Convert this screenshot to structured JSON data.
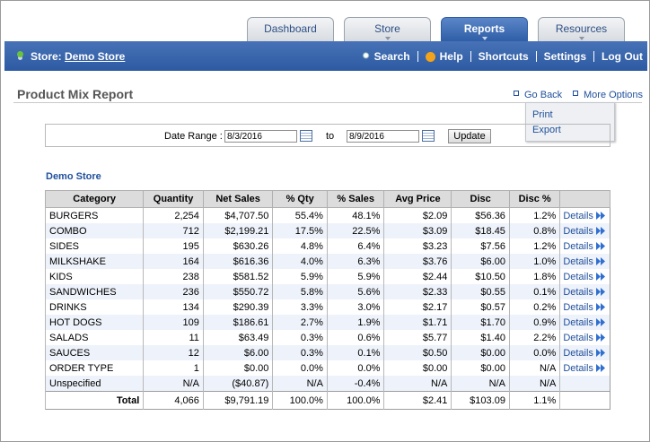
{
  "tabs": [
    "Dashboard",
    "Store",
    "Reports",
    "Resources"
  ],
  "active_tab": 2,
  "store": {
    "label": "Store:",
    "name": "Demo Store"
  },
  "nav": [
    "Search",
    "Help",
    "Shortcuts",
    "Settings",
    "Log Out"
  ],
  "page_title": "Product Mix Report",
  "links": [
    "Go Back",
    "More Options"
  ],
  "menu": [
    "Print",
    "Export"
  ],
  "date_range": {
    "label": "Date Range :",
    "from": "8/3/2016",
    "to_label": "to",
    "to": "8/9/2016",
    "button": "Update"
  },
  "table": {
    "caption": "Demo Store",
    "headers": [
      "Category",
      "Quantity",
      "Net Sales",
      "% Qty",
      "% Sales",
      "Avg Price",
      "Disc",
      "Disc %"
    ],
    "rows": [
      {
        "cells": [
          "BURGERS",
          "2,254",
          "$4,707.50",
          "55.4%",
          "48.1%",
          "$2.09",
          "$56.36",
          "1.2%"
        ],
        "action": "Details"
      },
      {
        "cells": [
          "COMBO",
          "712",
          "$2,199.21",
          "17.5%",
          "22.5%",
          "$3.09",
          "$18.45",
          "0.8%"
        ],
        "action": "Details"
      },
      {
        "cells": [
          "SIDES",
          "195",
          "$630.26",
          "4.8%",
          "6.4%",
          "$3.23",
          "$7.56",
          "1.2%"
        ],
        "action": "Details"
      },
      {
        "cells": [
          "MILKSHAKE",
          "164",
          "$616.36",
          "4.0%",
          "6.3%",
          "$3.76",
          "$6.00",
          "1.0%"
        ],
        "action": "Details"
      },
      {
        "cells": [
          "KIDS",
          "238",
          "$581.52",
          "5.9%",
          "5.9%",
          "$2.44",
          "$10.50",
          "1.8%"
        ],
        "action": "Details"
      },
      {
        "cells": [
          "SANDWICHES",
          "236",
          "$550.72",
          "5.8%",
          "5.6%",
          "$2.33",
          "$0.55",
          "0.1%"
        ],
        "action": "Details"
      },
      {
        "cells": [
          "DRINKS",
          "134",
          "$290.39",
          "3.3%",
          "3.0%",
          "$2.17",
          "$0.57",
          "0.2%"
        ],
        "action": "Details"
      },
      {
        "cells": [
          "HOT DOGS",
          "109",
          "$186.61",
          "2.7%",
          "1.9%",
          "$1.71",
          "$1.70",
          "0.9%"
        ],
        "action": "Details"
      },
      {
        "cells": [
          "SALADS",
          "11",
          "$63.49",
          "0.3%",
          "0.6%",
          "$5.77",
          "$1.40",
          "2.2%"
        ],
        "action": "Details"
      },
      {
        "cells": [
          "SAUCES",
          "12",
          "$6.00",
          "0.3%",
          "0.1%",
          "$0.50",
          "$0.00",
          "0.0%"
        ],
        "action": "Details"
      },
      {
        "cells": [
          "ORDER TYPE",
          "1",
          "$0.00",
          "0.0%",
          "0.0%",
          "$0.00",
          "$0.00",
          "N/A"
        ],
        "action": "Details"
      },
      {
        "cells": [
          "Unspecified",
          "N/A",
          "($40.87)",
          "N/A",
          "-0.4%",
          "N/A",
          "N/A",
          "N/A"
        ]
      }
    ],
    "total": [
      "Total",
      "4,066",
      "$9,791.19",
      "100.0%",
      "100.0%",
      "$2.41",
      "$103.09",
      "1.1%"
    ]
  }
}
